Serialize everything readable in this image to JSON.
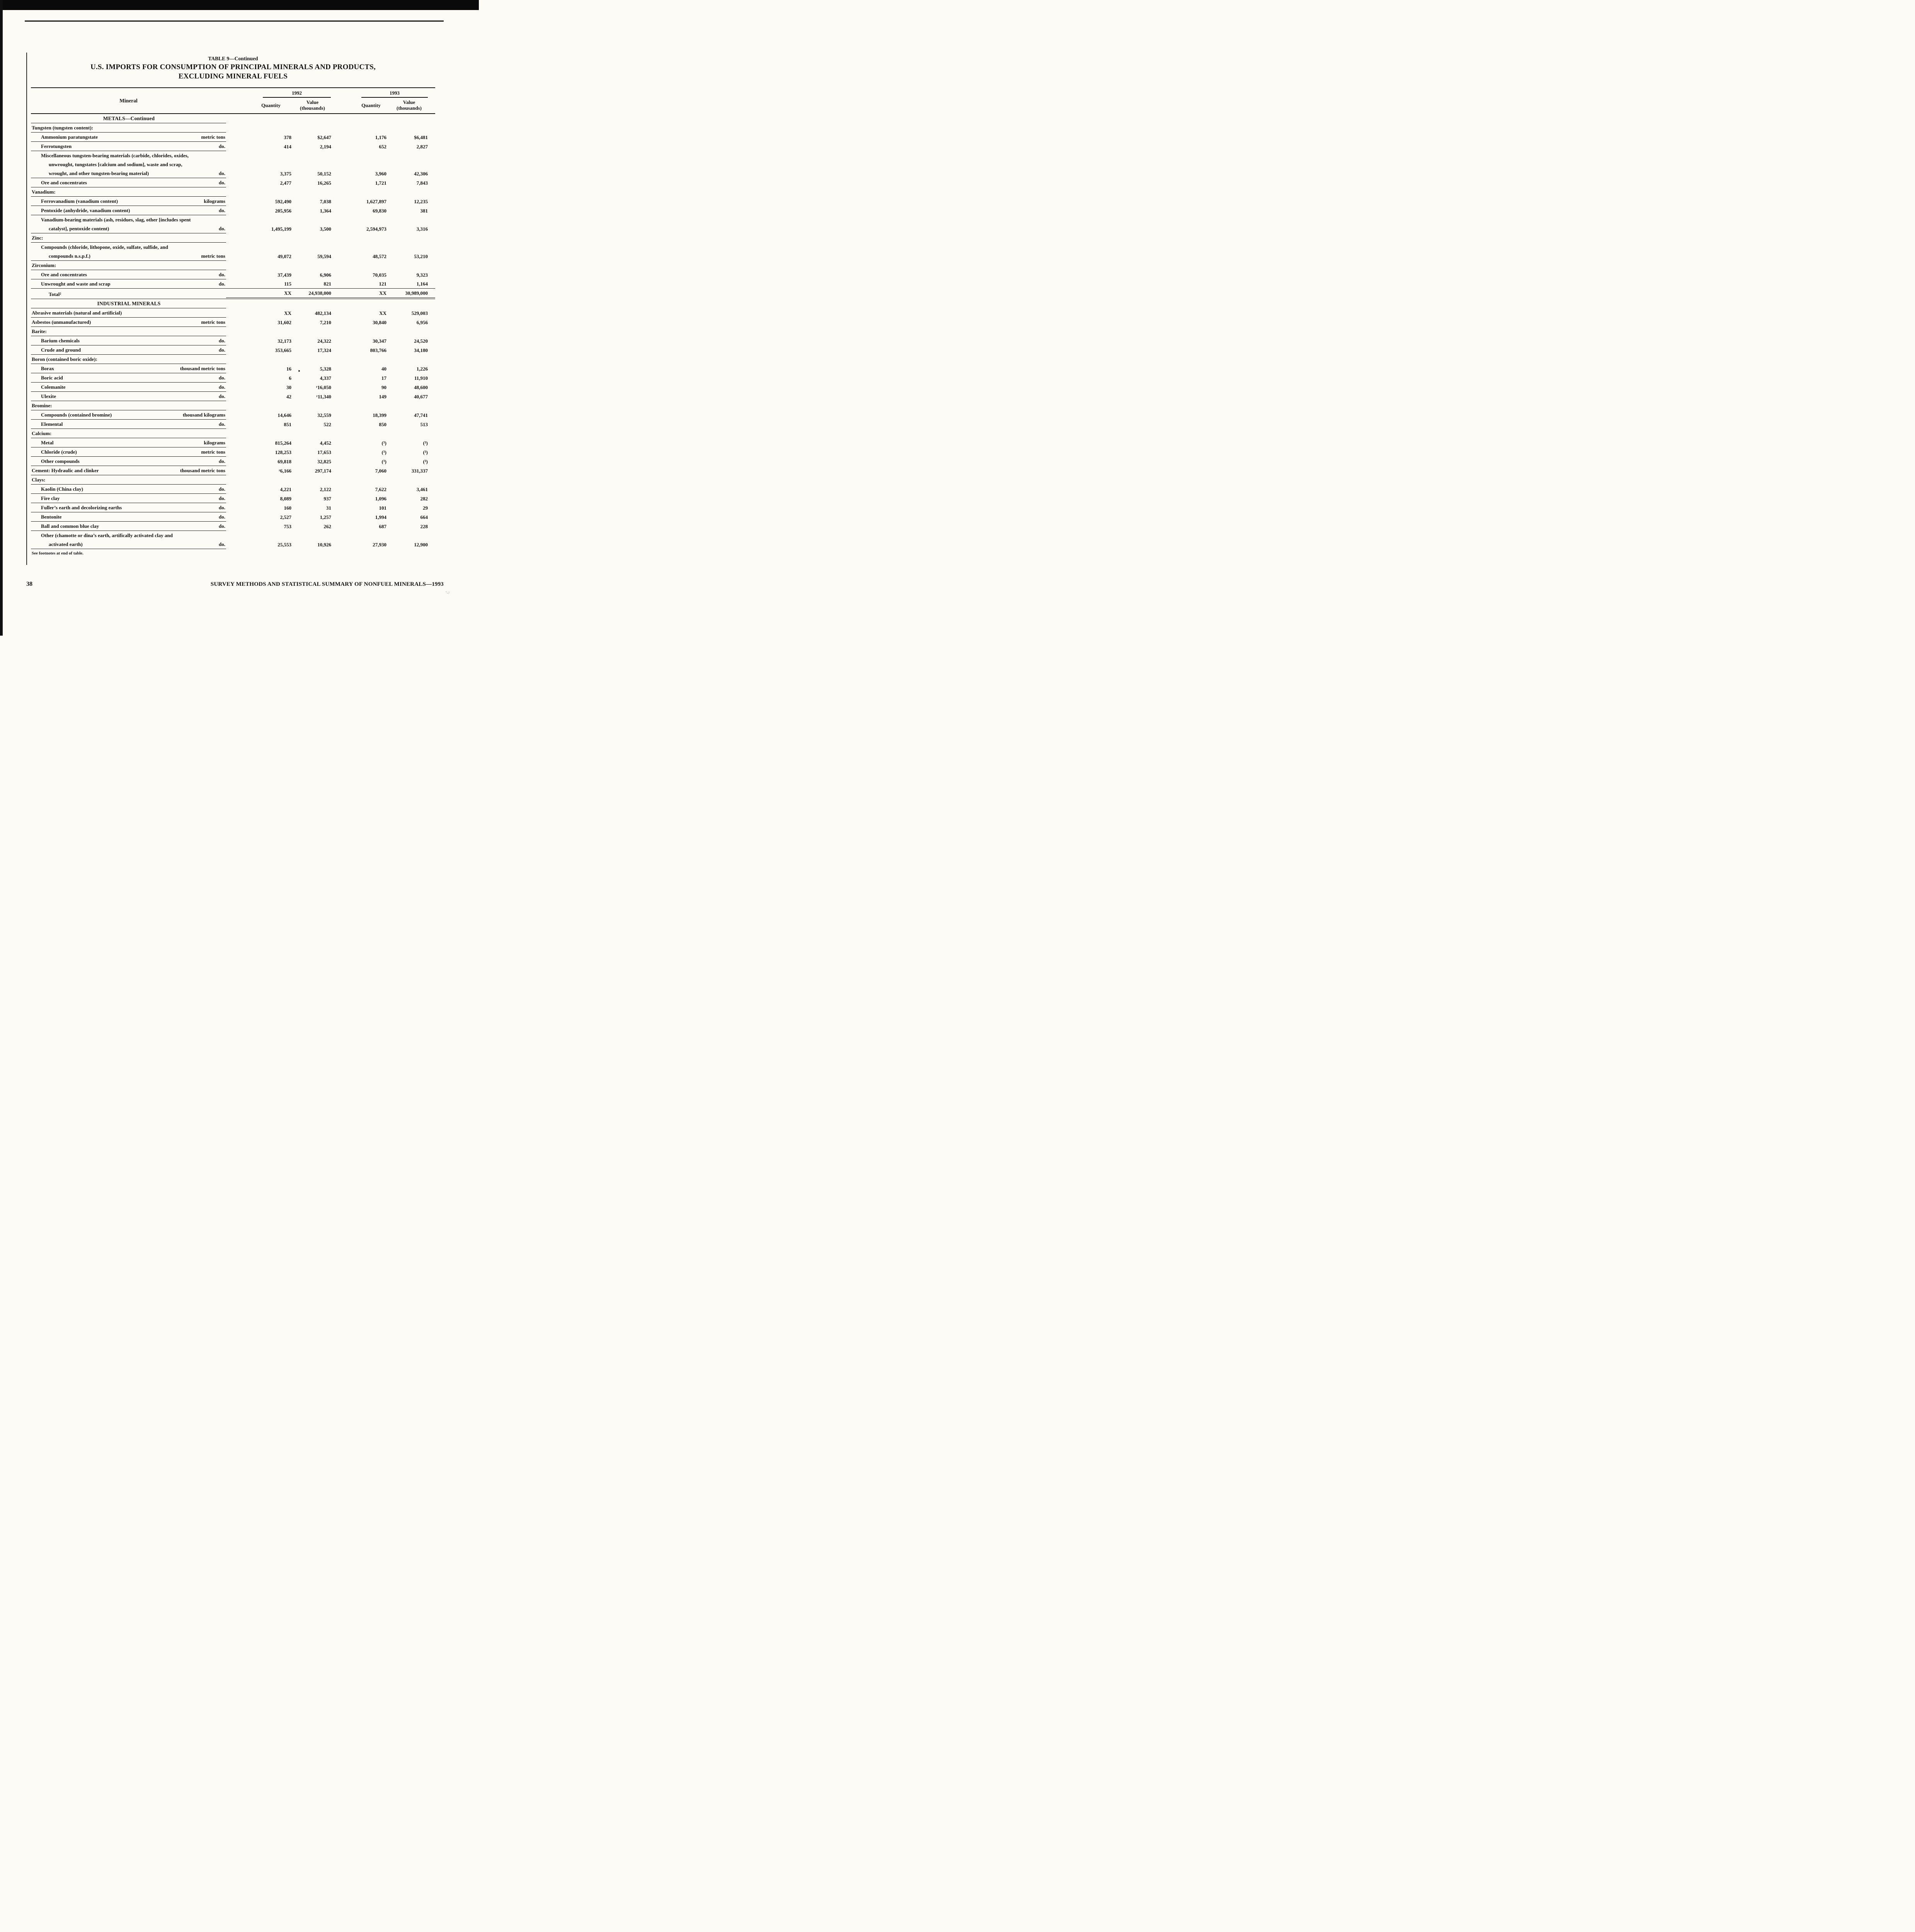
{
  "page": {
    "page_number": "38",
    "footer_right": "SURVEY METHODS AND STATISTICAL SUMMARY OF NONFUEL MINERALS—1993"
  },
  "table": {
    "caption": "TABLE 9—Continued",
    "title_line1": "U.S. IMPORTS FOR CONSUMPTION OF PRINCIPAL MINERALS AND PRODUCTS,",
    "title_line2": "EXCLUDING MINERAL FUELS",
    "mineral_header": "Mineral",
    "years": [
      "1992",
      "1993"
    ],
    "sub": {
      "quantity": "Quantity",
      "value_line1": "Value",
      "value_line2": "(thousands)"
    },
    "footnote": "See footnotes at end of table.",
    "rows": [
      {
        "t": "center",
        "label": "METALS—Continued"
      },
      {
        "t": "group",
        "label": "Tungsten (tungsten content):"
      },
      {
        "t": "data",
        "ind": 1,
        "lines": [
          "Ammonium paratungstate"
        ],
        "unit": "metric tons",
        "c": [
          "378",
          "$2,647",
          "1,176",
          "$6,481"
        ]
      },
      {
        "t": "data",
        "ind": 1,
        "lines": [
          "Ferrotungsten"
        ],
        "unit": "do.",
        "c": [
          "414",
          "2,194",
          "652",
          "2,827"
        ]
      },
      {
        "t": "data",
        "ind": 1,
        "lines": [
          "Miscellaneous tungsten-bearing materials (carbide, chlorides, oxides,",
          "unwrought, tungstates [calcium and sodium], waste and scrap,",
          "wrought, and other tungsten-bearing material)"
        ],
        "unit": "do.",
        "c": [
          "3,375",
          "50,152",
          "3,960",
          "42,306"
        ]
      },
      {
        "t": "data",
        "ind": 1,
        "lines": [
          "Ore and concentrates"
        ],
        "unit": "do.",
        "c": [
          "2,477",
          "16,265",
          "1,721",
          "7,843"
        ]
      },
      {
        "t": "group",
        "label": "Vanadium:"
      },
      {
        "t": "data",
        "ind": 1,
        "lines": [
          "Ferrovanadium (vanadium content)"
        ],
        "unit": "kilograms",
        "c": [
          "592,490",
          "7,038",
          "1,627,897",
          "12,235"
        ]
      },
      {
        "t": "data",
        "ind": 1,
        "lines": [
          "Pentoxide (anhydride, vanadium content)"
        ],
        "unit": "do.",
        "c": [
          "205,956",
          "1,364",
          "69,830",
          "381"
        ]
      },
      {
        "t": "data",
        "ind": 1,
        "lines": [
          "Vanadium-bearing materials (ash, residues, slag, other [includes spent",
          "catalyst], pentoxide content)"
        ],
        "unit": "do.",
        "c": [
          "1,495,199",
          "3,500",
          "2,594,973",
          "3,316"
        ]
      },
      {
        "t": "group",
        "label": "Zinc:"
      },
      {
        "t": "data",
        "ind": 1,
        "lines": [
          "Compounds (chloride, lithopone, oxide, sulfate, sulfide, and",
          "compounds n.s.p.f.)"
        ],
        "unit": "metric tons",
        "c": [
          "49,072",
          "59,594",
          "48,572",
          "53,210"
        ]
      },
      {
        "t": "group",
        "label": "Zirconium:"
      },
      {
        "t": "data",
        "ind": 1,
        "lines": [
          "Ore and concentrates"
        ],
        "unit": "do.",
        "c": [
          "37,439",
          "6,906",
          "70,035",
          "9,323"
        ]
      },
      {
        "t": "data",
        "ind": 1,
        "lines": [
          "Unwrought and waste and scrap"
        ],
        "unit": "do.",
        "c": [
          "115",
          "821",
          "121",
          "1,164"
        ],
        "nline": true
      },
      {
        "t": "total",
        "ind": 2,
        "lines": [
          "Total²"
        ],
        "unit": "",
        "c": [
          "XX",
          "24,938,000",
          "XX",
          "30,989,000"
        ]
      },
      {
        "t": "center",
        "label": "INDUSTRIAL MINERALS"
      },
      {
        "t": "data",
        "ind": 0,
        "lines": [
          "Abrasive materials (natural and artificial)"
        ],
        "unit": "",
        "c": [
          "XX",
          "482,134",
          "XX",
          "529,003"
        ]
      },
      {
        "t": "data",
        "ind": 0,
        "lines": [
          "Asbestos (unmanufactured)"
        ],
        "unit": "metric tons",
        "c": [
          "31,602",
          "7,210",
          "30,840",
          "6,956"
        ]
      },
      {
        "t": "group",
        "label": "Barite:"
      },
      {
        "t": "data",
        "ind": 1,
        "lines": [
          "Barium chemicals"
        ],
        "unit": "do.",
        "c": [
          "32,173",
          "24,322",
          "30,347",
          "24,520"
        ]
      },
      {
        "t": "data",
        "ind": 1,
        "lines": [
          "Crude and ground"
        ],
        "unit": "do.",
        "c": [
          "353,665",
          "17,324",
          "803,766",
          "34,180"
        ]
      },
      {
        "t": "group",
        "label": "Boron (contained boric oxide):"
      },
      {
        "t": "data",
        "ind": 1,
        "lines": [
          "Borax"
        ],
        "unit": "thousand metric tons",
        "c": [
          "16",
          "5,328",
          "40",
          "1,226"
        ]
      },
      {
        "t": "data",
        "ind": 1,
        "lines": [
          "Boric acid"
        ],
        "unit": "do.",
        "c": [
          "6",
          "4,337",
          "17",
          "11,910"
        ]
      },
      {
        "t": "data",
        "ind": 1,
        "lines": [
          "Colemanite"
        ],
        "unit": "do.",
        "c": [
          "30",
          "ʳ16,050",
          "90",
          "48,600"
        ]
      },
      {
        "t": "data",
        "ind": 1,
        "lines": [
          "Ulexite"
        ],
        "unit": "do.",
        "c": [
          "42",
          "ʳ11,340",
          "149",
          "40,677"
        ]
      },
      {
        "t": "group",
        "label": "Bromine:"
      },
      {
        "t": "data",
        "ind": 1,
        "lines": [
          "Compounds (contained bromine)"
        ],
        "unit": "thousand kilograms",
        "c": [
          "14,646",
          "32,559",
          "18,399",
          "47,741"
        ]
      },
      {
        "t": "data",
        "ind": 1,
        "lines": [
          "Elemental"
        ],
        "unit": "do.",
        "c": [
          "851",
          "522",
          "850",
          "513"
        ]
      },
      {
        "t": "group",
        "label": "Calcium:"
      },
      {
        "t": "data",
        "ind": 1,
        "lines": [
          "Metal"
        ],
        "unit": "kilograms",
        "c": [
          "815,264",
          "4,452",
          "(³)",
          "(³)"
        ]
      },
      {
        "t": "data",
        "ind": 1,
        "lines": [
          "Chloride (crude)"
        ],
        "unit": "metric tons",
        "c": [
          "128,253",
          "17,653",
          "(³)",
          "(³)"
        ]
      },
      {
        "t": "data",
        "ind": 1,
        "lines": [
          "Other compounds"
        ],
        "unit": "do.",
        "c": [
          "69,818",
          "32,825",
          "(³)",
          "(³)"
        ]
      },
      {
        "t": "data",
        "ind": 0,
        "lines": [
          "Cement: Hydraulic and clinker"
        ],
        "unit": "thousand metric tons",
        "c": [
          "ʳ6,166",
          "297,174",
          "7,060",
          "331,337"
        ]
      },
      {
        "t": "group",
        "label": "Clays:"
      },
      {
        "t": "data",
        "ind": 1,
        "lines": [
          "Kaolin (China clay)"
        ],
        "unit": "do.",
        "c": [
          "4,221",
          "2,122",
          "7,622",
          "3,461"
        ]
      },
      {
        "t": "data",
        "ind": 1,
        "lines": [
          "Fire clay"
        ],
        "unit": "do.",
        "c": [
          "8,089",
          "937",
          "1,096",
          "282"
        ]
      },
      {
        "t": "data",
        "ind": 1,
        "lines": [
          "Fuller’s earth and decolorizing earths"
        ],
        "unit": "do.",
        "c": [
          "160",
          "31",
          "101",
          "29"
        ]
      },
      {
        "t": "data",
        "ind": 1,
        "lines": [
          "Bentonite"
        ],
        "unit": "do.",
        "c": [
          "2,527",
          "1,257",
          "1,994",
          "664"
        ]
      },
      {
        "t": "data",
        "ind": 1,
        "lines": [
          "Ball and common blue clay"
        ],
        "unit": "do.",
        "c": [
          "753",
          "262",
          "687",
          "228"
        ]
      },
      {
        "t": "data",
        "ind": 1,
        "lines": [
          "Other (chamotte or dina’s earth, artifically activated clay and",
          "activated earth)"
        ],
        "unit": "do.",
        "c": [
          "25,553",
          "10,926",
          "27,930",
          "12,900"
        ]
      }
    ]
  }
}
